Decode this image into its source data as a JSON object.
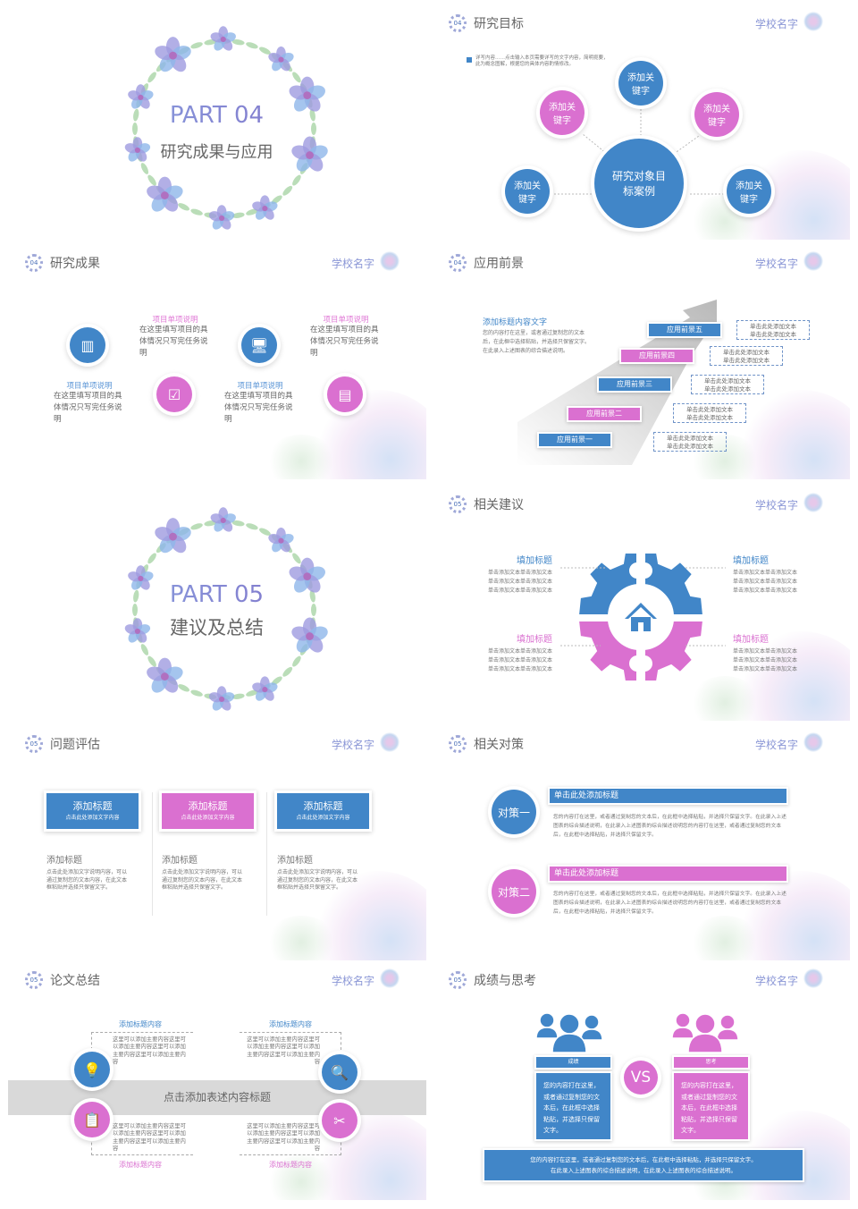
{
  "colors": {
    "blue": "#4186c8",
    "pink": "#da70d0",
    "school": "#8a96d6",
    "gray_band": "#d9d9d9"
  },
  "common": {
    "school_name": "学校名字",
    "school_logo_icon": "flower-icon"
  },
  "slides": {
    "s0": {
      "part": "PART 04",
      "subtitle": "研究成果与应用"
    },
    "s1": {
      "badge": "04",
      "title": "研究目标",
      "bullet": "详写内容……点击输入本页需要详写的文字内容，简明扼要，此为概念图解，根据您的具体内容酌情修改。",
      "center": "研究对象目标案例",
      "nodes": [
        "添加关键字",
        "添加关键字",
        "添加关键字",
        "添加关键字",
        "添加关键字"
      ]
    },
    "s2": {
      "badge": "04",
      "title": "研究成果",
      "items": [
        {
          "title": "项目单项说明",
          "body": "在这里填写项目的具体情况只写完任务说明",
          "icon": "binders-icon"
        },
        {
          "title": "项目单项说明",
          "body": "在这里填写项目的具体情况只写完任务说明",
          "icon": "clipboard-check-icon"
        },
        {
          "title": "项目单项说明",
          "body": "在这里填写项目的具体情况只写完任务说明",
          "icon": "monitor-mail-icon"
        },
        {
          "title": "项目单项说明",
          "body": "在这里填写项目的具体情况只写完任务说明",
          "icon": "document-icon"
        }
      ]
    },
    "s3": {
      "badge": "04",
      "title": "应用前景",
      "heading": "添加标题内容文字",
      "body": "您的内容打在这里，或者通过复制您的文本后，在此框中选择粘贴，并选择只保留文字。在此录入上述图表的综合描述说明。",
      "steps": [
        "应用前景一",
        "应用前景二",
        "应用前景三",
        "应用前景四",
        "应用前景五"
      ],
      "notes": [
        "单击此处添加文本\n单击此处添加文本",
        "单击此处添加文本\n单击此处添加文本",
        "单击此处添加文本\n单击此处添加文本",
        "单击此处添加文本\n单击此处添加文本",
        "单击此处添加文本\n单击此处添加文本"
      ]
    },
    "s4": {
      "part": "PART 05",
      "subtitle": "建议及总结"
    },
    "s5": {
      "badge": "05",
      "title": "相关建议",
      "center_icon": "home-icon",
      "blocks": [
        {
          "title": "填加标题",
          "body": "单击添加文本单击添加文本\n单击添加文本单击添加文本\n单击添加文本单击添加文本"
        },
        {
          "title": "填加标题",
          "body": "单击添加文本单击添加文本\n单击添加文本单击添加文本\n单击添加文本单击添加文本"
        },
        {
          "title": "填加标题",
          "body": "单击添加文本单击添加文本\n单击添加文本单击添加文本\n单击添加文本单击添加文本"
        },
        {
          "title": "填加标题",
          "body": "单击添加文本单击添加文本\n单击添加文本单击添加文本\n单击添加文本单击添加文本"
        }
      ]
    },
    "s6": {
      "badge": "05",
      "title": "问题评估",
      "cards": [
        {
          "title": "添加标题",
          "sub": "点击此处添加文字内容",
          "heading": "添加标题",
          "body": "点击此处添加文字说明内容，可以通过复制您的文本内容，在此文本框粘贴并选择只保留文字。"
        },
        {
          "title": "添加标题",
          "sub": "点击此处添加文字内容",
          "heading": "添加标题",
          "body": "点击此处添加文字说明内容，可以通过复制您的文本内容，在此文本框粘贴并选择只保留文字。"
        },
        {
          "title": "添加标题",
          "sub": "点击此处添加文字内容",
          "heading": "添加标题",
          "body": "点击此处添加文字说明内容，可以通过复制您的文本内容，在此文本框粘贴并选择只保留文字。"
        }
      ]
    },
    "s7": {
      "badge": "05",
      "title": "相关对策",
      "items": [
        {
          "label": "对策一",
          "title": "单击此处添加标题",
          "body": "您的内容打在这里，或者通过复制您的文本后，在此框中选择粘贴，并选择只保留文字。在此录入上述图表的综合描述说明，在此录入上述图表的综合描述说明您的内容打在这里，或者通过复制您的文本后，在此框中选择粘贴，并选择只保留文字。"
        },
        {
          "label": "对策二",
          "title": "单击此处添加标题",
          "body": "您的内容打在这里，或者通过复制您的文本后，在此框中选择粘贴，并选择只保留文字。在此录入上述图表的综合描述说明，在此录入上述图表的综合描述说明您的内容打在这里，或者通过复制您的文本后，在此框中选择粘贴，并选择只保留文字。"
        }
      ]
    },
    "s8": {
      "badge": "05",
      "title": "论文总结",
      "band": "点击添加表述内容标题",
      "quads": [
        {
          "title": "添加标题内容",
          "body": "这里可以添加主要内容这里可以添加主要内容这里可以添加主要内容这里可以添加主要内容",
          "icon": "lightbulb-plus-icon"
        },
        {
          "title": "添加标题内容",
          "body": "这里可以添加主要内容这里可以添加主要内容这里可以添加主要内容这里可以添加主要内容",
          "icon": "magnifier-chart-icon"
        },
        {
          "title": "添加标题内容",
          "body": "这里可以添加主要内容这里可以添加主要内容这里可以添加主要内容这里可以添加主要内容",
          "icon": "checklist-icon"
        },
        {
          "title": "添加标题内容",
          "body": "这里可以添加主要内容这里可以添加主要内容这里可以添加主要内容这里可以添加主要内容",
          "icon": "tools-icon"
        }
      ]
    },
    "s9": {
      "badge": "05",
      "title": "成绩与思考",
      "vs": "VS",
      "left": {
        "label": "成绩",
        "body": "您的内容打在这里，或者通过复制您的文本后，在此框中选择粘贴，并选择只保留文字。"
      },
      "right": {
        "label": "思考",
        "body": "您的内容打在这里，或者通过复制您的文本后，在此框中选择粘贴，并选择只保留文字。"
      },
      "footer": "您的内容打在这里，或者通过复制您的文本后，在此框中选择粘贴，并选择只保留文字。\n在此录入上述图表的综合描述说明，在此录入上述图表的综合描述说明。"
    }
  }
}
